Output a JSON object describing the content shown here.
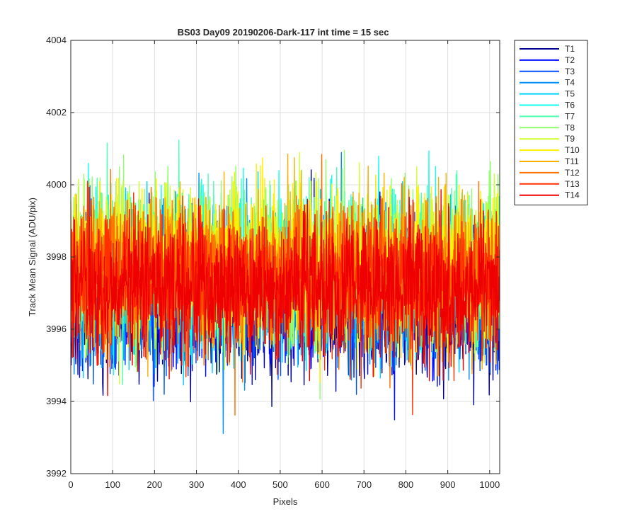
{
  "chart_data": {
    "type": "line",
    "title": "BS03 Day09 20190206-Dark-117 int time = 15 sec",
    "xlabel": "Pixels",
    "ylabel": "Track Mean Signal (ADU/pix)",
    "xlim": [
      0,
      1024
    ],
    "ylim": [
      3992,
      4004
    ],
    "xticks": [
      0,
      100,
      200,
      300,
      400,
      500,
      600,
      700,
      800,
      900,
      1000
    ],
    "yticks": [
      3992,
      3994,
      3996,
      3998,
      4000,
      4002,
      4004
    ],
    "grid": true,
    "legend_position": "outside-top-right",
    "series": [
      {
        "name": "T1",
        "color": "#00008F",
        "mean": 3996.6,
        "noise": 0.95
      },
      {
        "name": "T2",
        "color": "#0010FF",
        "mean": 3996.8,
        "noise": 0.95
      },
      {
        "name": "T3",
        "color": "#0050FF",
        "mean": 3997.0,
        "noise": 0.95
      },
      {
        "name": "T4",
        "color": "#0090FF",
        "mean": 3997.2,
        "noise": 1.0
      },
      {
        "name": "T5",
        "color": "#00D0FF",
        "mean": 3997.4,
        "noise": 1.0
      },
      {
        "name": "T6",
        "color": "#10FFEF",
        "mean": 3997.6,
        "noise": 1.0
      },
      {
        "name": "T7",
        "color": "#50FFAF",
        "mean": 3997.8,
        "noise": 1.0
      },
      {
        "name": "T8",
        "color": "#90FF6F",
        "mean": 3997.9,
        "noise": 1.0
      },
      {
        "name": "T9",
        "color": "#CFFF30",
        "mean": 3997.9,
        "noise": 1.0
      },
      {
        "name": "T10",
        "color": "#FFEF00",
        "mean": 3997.8,
        "noise": 1.0
      },
      {
        "name": "T11",
        "color": "#FFAF00",
        "mean": 3997.6,
        "noise": 1.0
      },
      {
        "name": "T12",
        "color": "#FF7000",
        "mean": 3997.5,
        "noise": 0.95
      },
      {
        "name": "T13",
        "color": "#FF3000",
        "mean": 3997.3,
        "noise": 0.95
      },
      {
        "name": "T14",
        "color": "#EF0000",
        "mean": 3997.1,
        "noise": 0.9
      }
    ],
    "points_per_series": 1024
  }
}
